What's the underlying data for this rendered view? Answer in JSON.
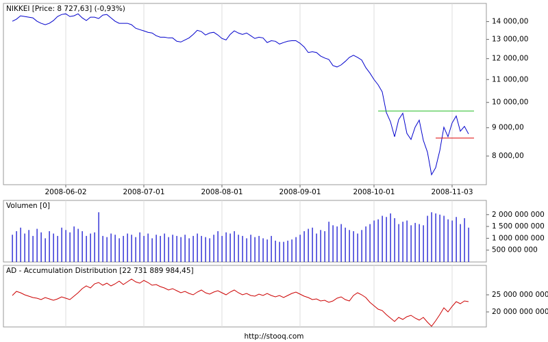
{
  "chart_data": [
    {
      "type": "line",
      "title": "NIKKEI [Price: 8 727,63] (-0,93%)",
      "color": "#0000cc",
      "log_scale": true,
      "grid": true,
      "categories": [
        null,
        null,
        null,
        null,
        null,
        null,
        null,
        null,
        null,
        null,
        null,
        null,
        null,
        "2008-06-02",
        null,
        null,
        null,
        null,
        null,
        null,
        null,
        null,
        null,
        null,
        null,
        null,
        null,
        null,
        null,
        null,
        null,
        null,
        "2008-07-01",
        null,
        null,
        null,
        null,
        null,
        null,
        null,
        null,
        null,
        null,
        null,
        null,
        null,
        null,
        null,
        null,
        null,
        null,
        "2008-08-01",
        null,
        null,
        null,
        null,
        null,
        null,
        null,
        null,
        null,
        null,
        null,
        null,
        null,
        null,
        null,
        null,
        null,
        null,
        "2008-09-01",
        null,
        null,
        null,
        null,
        null,
        null,
        null,
        null,
        null,
        null,
        null,
        null,
        null,
        null,
        null,
        null,
        null,
        "2008-10-01",
        null,
        null,
        null,
        null,
        null,
        null,
        null,
        null,
        null,
        null,
        null,
        null,
        null,
        null,
        null,
        null,
        null,
        null,
        "2008-11-03",
        null,
        null,
        null,
        null
      ],
      "values": [
        14020,
        14140,
        14340,
        14300,
        14260,
        14220,
        14020,
        13900,
        13820,
        13900,
        14060,
        14300,
        14420,
        14460,
        14300,
        14340,
        14460,
        14220,
        14060,
        14260,
        14260,
        14180,
        14380,
        14420,
        14220,
        14020,
        13900,
        13900,
        13900,
        13820,
        13620,
        13540,
        13470,
        13390,
        13350,
        13200,
        13120,
        13120,
        13080,
        13080,
        12900,
        12860,
        12970,
        13080,
        13270,
        13500,
        13430,
        13240,
        13350,
        13390,
        13240,
        13050,
        12970,
        13270,
        13470,
        13350,
        13270,
        13350,
        13200,
        13050,
        13120,
        13080,
        12830,
        12930,
        12900,
        12750,
        12830,
        12900,
        12930,
        12930,
        12790,
        12600,
        12310,
        12350,
        12310,
        12130,
        12030,
        11960,
        11660,
        11590,
        11690,
        11860,
        12060,
        12170,
        12060,
        11930,
        11560,
        11300,
        11000,
        10760,
        10450,
        9590,
        9230,
        8670,
        9310,
        9560,
        8790,
        8570,
        9020,
        9290,
        8540,
        8130,
        7400,
        7620,
        8180,
        9020,
        8670,
        9180,
        9450,
        8870,
        9050,
        8770
      ],
      "ylim": [
        7100,
        15100
      ],
      "yticks": [
        {
          "value": 8000,
          "label": "8 000,00"
        },
        {
          "value": 9000,
          "label": "9 000,00"
        },
        {
          "value": 10000,
          "label": "10 000,00"
        },
        {
          "value": 11000,
          "label": "11 000,00"
        },
        {
          "value": 12000,
          "label": "12 000,00"
        },
        {
          "value": 13000,
          "label": "13 000,00"
        },
        {
          "value": 14000,
          "label": "14 000,00"
        }
      ],
      "hlines": [
        {
          "value": 9650,
          "color": "#22bb22",
          "x_from": 89,
          "x_to": 111
        },
        {
          "value": 8620,
          "color": "#dd0000",
          "x_from": 103,
          "x_to": 111
        }
      ]
    },
    {
      "type": "bar",
      "title": "Volumen [0]",
      "color": "#0000cc",
      "values": [
        1150000000,
        1300000000,
        1450000000,
        1200000000,
        1350000000,
        1100000000,
        1400000000,
        1250000000,
        1000000000,
        1300000000,
        1200000000,
        1100000000,
        1450000000,
        1350000000,
        1250000000,
        1500000000,
        1400000000,
        1300000000,
        1100000000,
        1200000000,
        1250000000,
        2100000000,
        1100000000,
        1050000000,
        1200000000,
        1150000000,
        1000000000,
        1100000000,
        1200000000,
        1150000000,
        1050000000,
        1250000000,
        1100000000,
        1200000000,
        1000000000,
        1150000000,
        1100000000,
        1200000000,
        1050000000,
        1150000000,
        1100000000,
        1050000000,
        1150000000,
        1000000000,
        1100000000,
        1200000000,
        1100000000,
        1050000000,
        1000000000,
        1150000000,
        1300000000,
        1100000000,
        1250000000,
        1200000000,
        1300000000,
        1150000000,
        1100000000,
        1000000000,
        1150000000,
        1050000000,
        1100000000,
        1000000000,
        950000000,
        1100000000,
        900000000,
        850000000,
        850000000,
        900000000,
        950000000,
        1050000000,
        1150000000,
        1300000000,
        1400000000,
        1450000000,
        1200000000,
        1350000000,
        1300000000,
        1700000000,
        1550000000,
        1500000000,
        1600000000,
        1450000000,
        1350000000,
        1300000000,
        1200000000,
        1350000000,
        1500000000,
        1600000000,
        1750000000,
        1800000000,
        1950000000,
        1900000000,
        2050000000,
        1850000000,
        1600000000,
        1700000000,
        1750000000,
        1550000000,
        1650000000,
        1600000000,
        1550000000,
        1950000000,
        2100000000,
        2050000000,
        2000000000,
        1950000000,
        1800000000,
        1750000000,
        1900000000,
        1600000000,
        1850000000,
        1450000000
      ],
      "ylim": [
        0,
        2600000000
      ],
      "yticks": [
        {
          "value": 500000000,
          "label": "500 000 000"
        },
        {
          "value": 1000000000,
          "label": "1 000 000 000"
        },
        {
          "value": 1500000000,
          "label": "1 500 000 000"
        },
        {
          "value": 2000000000,
          "label": "2 000 000 000"
        }
      ]
    },
    {
      "type": "line",
      "title": "AD - Accumulation Distribution [22 731 889 984,45]",
      "color": "#cc0000",
      "values": [
        24800000000,
        26000000000,
        25600000000,
        25000000000,
        24600000000,
        24200000000,
        24000000000,
        23600000000,
        24200000000,
        23800000000,
        23400000000,
        23800000000,
        24400000000,
        24000000000,
        23600000000,
        24600000000,
        25600000000,
        26800000000,
        27600000000,
        27000000000,
        28200000000,
        28600000000,
        27800000000,
        28400000000,
        27600000000,
        28200000000,
        29000000000,
        28000000000,
        28800000000,
        29600000000,
        28800000000,
        28400000000,
        29200000000,
        28600000000,
        27800000000,
        28000000000,
        27400000000,
        27000000000,
        26400000000,
        26800000000,
        26200000000,
        25600000000,
        26000000000,
        25400000000,
        25000000000,
        25800000000,
        26400000000,
        25600000000,
        25200000000,
        25800000000,
        26200000000,
        25600000000,
        25000000000,
        25800000000,
        26400000000,
        25600000000,
        25000000000,
        25400000000,
        24800000000,
        24600000000,
        25200000000,
        24800000000,
        25400000000,
        24800000000,
        24400000000,
        24800000000,
        24200000000,
        24800000000,
        25400000000,
        25800000000,
        25200000000,
        24600000000,
        24200000000,
        23600000000,
        23800000000,
        23200000000,
        23400000000,
        22800000000,
        23200000000,
        24000000000,
        24400000000,
        23600000000,
        23200000000,
        24800000000,
        25600000000,
        25000000000,
        24200000000,
        22800000000,
        21800000000,
        20800000000,
        20400000000,
        19200000000,
        18200000000,
        17200000000,
        18400000000,
        17800000000,
        18600000000,
        19000000000,
        18200000000,
        17600000000,
        18400000000,
        17000000000,
        15800000000,
        17400000000,
        19200000000,
        21200000000,
        20000000000,
        21600000000,
        23000000000,
        22400000000,
        23200000000,
        23000000000
      ],
      "ylim": [
        15600000000,
        33600000000
      ],
      "yticks": [
        {
          "value": 20000000000,
          "label": "20 000 000 000"
        },
        {
          "value": 25000000000,
          "label": "25 000 000 000"
        }
      ]
    }
  ],
  "footer": "http://stooq.com"
}
